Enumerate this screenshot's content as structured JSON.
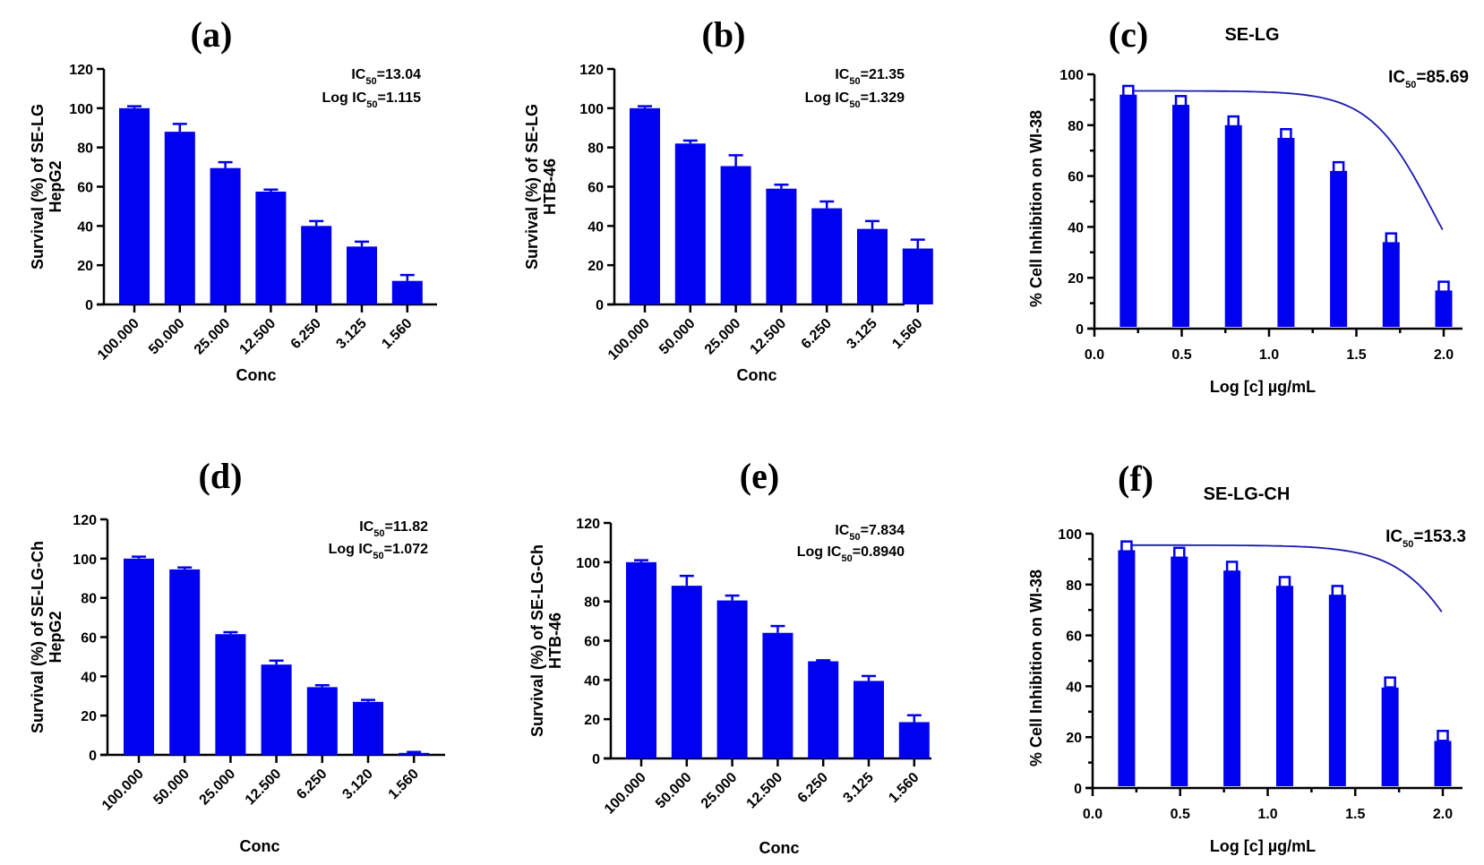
{
  "colors": {
    "bar": "#0000F0",
    "fit_curve": "#1a1ab0",
    "marker": "#0000F0",
    "axis": "#000000"
  },
  "chart_data": [
    {
      "id": "a",
      "panel_label": "(a)",
      "type": "bar",
      "title": "",
      "xlabel": "Conc",
      "ylabel": [
        "Survival (%) of SE-LG",
        "HepG2"
      ],
      "categories": [
        "100.000",
        "50.000",
        "25.000",
        "12.500",
        "6.250",
        "3.125",
        "1.560"
      ],
      "values": [
        100,
        88,
        69.5,
        57.5,
        40,
        29.5,
        12
      ],
      "error_upper": [
        101,
        92,
        72.5,
        58.5,
        42.5,
        32,
        15
      ],
      "ylim": [
        0,
        120
      ],
      "yticks": [
        0,
        20,
        40,
        60,
        80,
        100,
        120
      ],
      "annotations": [
        {
          "prefix": "IC",
          "sub": "50",
          "suffix": "=13.04"
        },
        {
          "prefix": "Log IC",
          "sub": "50",
          "suffix": "=1.115"
        }
      ]
    },
    {
      "id": "b",
      "panel_label": "(b)",
      "type": "bar",
      "title": "",
      "xlabel": "Conc",
      "ylabel": [
        "Survival (%) of SE-LG",
        "HTB-46"
      ],
      "categories": [
        "100.000",
        "50.000",
        "25.000",
        "12.500",
        "6.250",
        "3.125",
        "1.560"
      ],
      "values": [
        100,
        82,
        70.5,
        59,
        49,
        38.5,
        28.5
      ],
      "error_upper": [
        101,
        83.5,
        76,
        61,
        52.5,
        42.5,
        33
      ],
      "ylim": [
        0,
        120
      ],
      "yticks": [
        0,
        20,
        40,
        60,
        80,
        100,
        120
      ],
      "annotations": [
        {
          "prefix": "IC",
          "sub": "50",
          "suffix": "=21.35"
        },
        {
          "prefix": "Log IC",
          "sub": "50",
          "suffix": "=1.329"
        }
      ]
    },
    {
      "id": "c",
      "panel_label": "(c)",
      "type": "bar+line",
      "title": "SE-LG",
      "xlabel": "Log [c] µg/mL",
      "ylabel": [
        "% Cell Inhibition on WI-38"
      ],
      "x": [
        0.194,
        0.495,
        0.796,
        1.097,
        1.398,
        1.699,
        2.0
      ],
      "values": [
        92,
        88,
        80,
        75,
        62,
        34,
        15
      ],
      "markers": [
        93.5,
        89.5,
        81.5,
        76.5,
        63.5,
        35.5,
        16.5
      ],
      "fit_curve": {
        "ic50": 85.69,
        "top": 93.5,
        "hillslope": 1.1
      },
      "xlim": [
        0,
        2.1
      ],
      "xticks": [
        "0.0",
        "0.5",
        "1.0",
        "1.5",
        "2.0"
      ],
      "ylim": [
        0,
        100
      ],
      "yticks": [
        0,
        20,
        40,
        60,
        80,
        100
      ],
      "annotations": [
        {
          "prefix": "IC",
          "sub": "50",
          "suffix": "=85.69"
        }
      ]
    },
    {
      "id": "d",
      "panel_label": "(d)",
      "type": "bar",
      "title": "",
      "xlabel": "Conc",
      "ylabel": [
        "Survival (%) of SE-LG-Ch",
        "HepG2"
      ],
      "categories": [
        "100.000",
        "50.000",
        "25.000",
        "12.500",
        "6.250",
        "3.120",
        "1.560"
      ],
      "values": [
        100,
        94.5,
        61.5,
        46,
        34.5,
        27,
        1
      ],
      "error_upper": [
        101,
        95.5,
        62.5,
        48,
        35.5,
        28,
        1.5
      ],
      "ylim": [
        0,
        120
      ],
      "yticks": [
        0,
        20,
        40,
        60,
        80,
        100,
        120
      ],
      "annotations": [
        {
          "prefix": "IC",
          "sub": "50",
          "suffix": "=11.82"
        },
        {
          "prefix": "Log IC",
          "sub": "50",
          "suffix": "=1.072"
        }
      ]
    },
    {
      "id": "e",
      "panel_label": "(e)",
      "type": "bar",
      "title": "",
      "xlabel": "Conc",
      "ylabel": [
        "Survival (%) of SE-LG-Ch",
        "HTB-46"
      ],
      "categories": [
        "100.000",
        "50.000",
        "25.000",
        "12.500",
        "6.250",
        "3.125",
        "1.560"
      ],
      "values": [
        100,
        88,
        80.5,
        64,
        49.5,
        39.5,
        18.5
      ],
      "error_upper": [
        101,
        93,
        83,
        67.5,
        50,
        42,
        22
      ],
      "ylim": [
        0,
        120
      ],
      "yticks": [
        0,
        20,
        40,
        60,
        80,
        100,
        120
      ],
      "annotations": [
        {
          "prefix": "IC",
          "sub": "50",
          "suffix": "=7.834"
        },
        {
          "prefix": "Log IC",
          "sub": "50",
          "suffix": "=0.8940"
        }
      ]
    },
    {
      "id": "f",
      "panel_label": "(f)",
      "type": "bar+line",
      "title": "SE-LG-CH",
      "xlabel": "Log [c] µg/mL",
      "ylabel": [
        "% Cell Inhibition on WI-38"
      ],
      "x": [
        0.194,
        0.495,
        0.796,
        1.097,
        1.398,
        1.699,
        2.0
      ],
      "values": [
        93.5,
        91,
        85.5,
        79.5,
        76,
        39.5,
        18.5
      ],
      "markers": [
        95,
        92.5,
        87,
        81,
        77.5,
        41.5,
        20.5
      ],
      "fit_curve": {
        "ic50": 153.3,
        "top": 95.5,
        "hillslope": 1.0
      },
      "xlim": [
        0,
        2.1
      ],
      "xticks": [
        "0.0",
        "0.5",
        "1.0",
        "1.5",
        "2.0"
      ],
      "ylim": [
        0,
        100
      ],
      "yticks": [
        0,
        20,
        40,
        60,
        80,
        100
      ],
      "annotations": [
        {
          "prefix": "IC",
          "sub": "50",
          "suffix": "=153.3"
        }
      ]
    }
  ]
}
